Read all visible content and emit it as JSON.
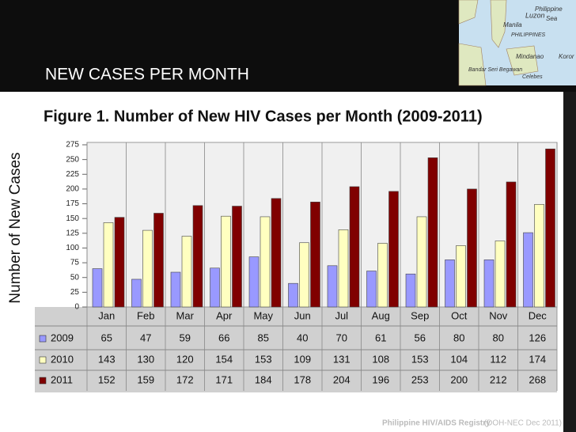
{
  "slide": {
    "title": "NEW CASES PER MONTH"
  },
  "map": {
    "labels": [
      "Luzon",
      "Manila",
      "PHILIPPINES",
      "Philippine",
      "Sea",
      "Mindanao",
      "Bandar Seri Begawan",
      "Celebes",
      "Koror"
    ]
  },
  "chart_data": {
    "type": "bar",
    "title": "Figure 1. Number of New HIV Cases per Month (2009-2011)",
    "y_label": "Number of New Cases",
    "categories": [
      "Jan",
      "Feb",
      "Mar",
      "Apr",
      "May",
      "Jun",
      "Jul",
      "Aug",
      "Sep",
      "Oct",
      "Nov",
      "Dec"
    ],
    "series": [
      {
        "name": "2009",
        "color": "#9999ff",
        "values": [
          65,
          47,
          59,
          66,
          85,
          40,
          70,
          61,
          56,
          80,
          80,
          126
        ]
      },
      {
        "name": "2010",
        "color": "#ffffc0",
        "values": [
          143,
          130,
          120,
          154,
          153,
          109,
          131,
          108,
          153,
          104,
          112,
          174
        ]
      },
      {
        "name": "2011",
        "color": "#800000",
        "values": [
          152,
          159,
          172,
          171,
          184,
          178,
          204,
          196,
          253,
          200,
          212,
          268
        ]
      }
    ],
    "ylim": [
      0,
      275
    ],
    "yticks": [
      0,
      25,
      50,
      75,
      100,
      125,
      150,
      175,
      200,
      225,
      250,
      275
    ],
    "source": "Philippine HIV/AIDS Registry",
    "source_note": "(DOH-NEC Dec 2011)"
  }
}
